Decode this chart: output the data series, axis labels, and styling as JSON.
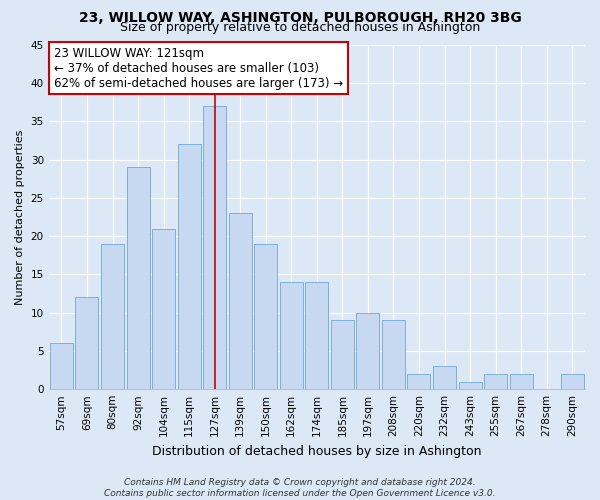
{
  "title": "23, WILLOW WAY, ASHINGTON, PULBOROUGH, RH20 3BG",
  "subtitle": "Size of property relative to detached houses in Ashington",
  "xlabel": "Distribution of detached houses by size in Ashington",
  "ylabel": "Number of detached properties",
  "bar_labels": [
    "57sqm",
    "69sqm",
    "80sqm",
    "92sqm",
    "104sqm",
    "115sqm",
    "127sqm",
    "139sqm",
    "150sqm",
    "162sqm",
    "174sqm",
    "185sqm",
    "197sqm",
    "208sqm",
    "220sqm",
    "232sqm",
    "243sqm",
    "255sqm",
    "267sqm",
    "278sqm",
    "290sqm"
  ],
  "bar_values": [
    6,
    12,
    19,
    29,
    21,
    32,
    37,
    23,
    19,
    14,
    14,
    9,
    10,
    9,
    2,
    3,
    1,
    2,
    2,
    0,
    2
  ],
  "bar_color": "#c6d9f1",
  "bar_edge_color": "#7db0d5",
  "highlight_bar_index": 6,
  "highlight_edge_color": "#cc0000",
  "highlight_line_color": "#cc0000",
  "annotation_line1": "23 WILLOW WAY: 121sqm",
  "annotation_line2": "← 37% of detached houses are smaller (103)",
  "annotation_line3": "62% of semi-detached houses are larger (173) →",
  "annotation_box_edge_color": "#cc0000",
  "annotation_box_bg_color": "#ffffff",
  "annotation_fontsize": 8.5,
  "ylim": [
    0,
    45
  ],
  "yticks": [
    0,
    5,
    10,
    15,
    20,
    25,
    30,
    35,
    40,
    45
  ],
  "title_fontsize": 10,
  "subtitle_fontsize": 9,
  "xlabel_fontsize": 9,
  "ylabel_fontsize": 8,
  "tick_fontsize": 7.5,
  "footer_text": "Contains HM Land Registry data © Crown copyright and database right 2024.\nContains public sector information licensed under the Open Government Licence v3.0.",
  "footer_fontsize": 6.5,
  "bg_color": "#dce8f5",
  "plot_bg_color": "#dce8f5"
}
